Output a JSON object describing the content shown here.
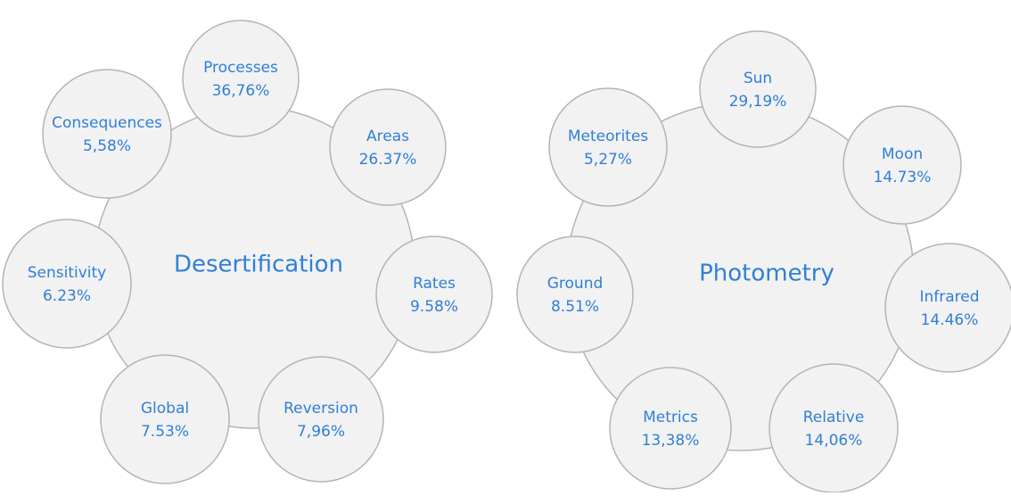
{
  "diagrams": [
    {
      "center": "Desertification",
      "nodes": [
        {
          "label": "Processes",
          "value": "36,76%"
        },
        {
          "label": "Areas",
          "value": "26.37%"
        },
        {
          "label": "Rates",
          "value": "9.58%"
        },
        {
          "label": "Reversion",
          "value": "7,96%"
        },
        {
          "label": "Global",
          "value": "7.53%"
        },
        {
          "label": "Sensitivity",
          "value": "6.23%"
        },
        {
          "label": "Consequences",
          "value": "5,58%"
        }
      ]
    },
    {
      "center": "Photometry",
      "nodes": [
        {
          "label": "Sun",
          "value": "29,19%"
        },
        {
          "label": "Moon",
          "value": "14.73%"
        },
        {
          "label": "Infrared",
          "value": "14.46%"
        },
        {
          "label": "Relative",
          "value": "14,06%"
        },
        {
          "label": "Metrics",
          "value": "13,38%"
        },
        {
          "label": "Ground",
          "value": "8.51%"
        },
        {
          "label": "Meteorites",
          "value": "5,27%"
        }
      ]
    }
  ]
}
